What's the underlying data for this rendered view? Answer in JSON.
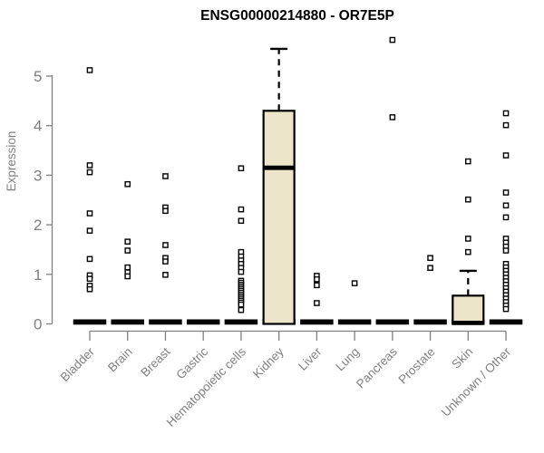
{
  "chart_data": {
    "type": "boxplot",
    "title": "ENSG00000214880 - OR7E5P",
    "ylabel": "Expression",
    "xlabel": "",
    "ylim": [
      0,
      5.9
    ],
    "yticks": [
      0,
      1,
      2,
      3,
      4,
      5
    ],
    "grid": false,
    "legend": "none",
    "colors": {
      "box_fill": "#ECE5C9",
      "box_border": "#000000",
      "median": "#000000",
      "whisker": "#000000",
      "outlier_fill": "#FFFFFF",
      "outlier_border": "#000000",
      "axis": "#808080",
      "tick_label": "#808080",
      "title": "#000000",
      "background": "#FFFFFF"
    },
    "categories": [
      "Bladder",
      "Brain",
      "Breast",
      "Gastric",
      "Hematopoietic cells",
      "Kidney",
      "Liver",
      "Lung",
      "Pancreas",
      "Prostate",
      "Skin",
      "Unknown / Other"
    ],
    "boxes": [
      {
        "label": "Bladder",
        "q1": 0,
        "median": 0,
        "q3": 0,
        "whisker_low": 0,
        "whisker_high": 0,
        "outliers": [
          5.12,
          3.2,
          3.06,
          2.23,
          1.88,
          1.31,
          0.98,
          0.91,
          0.77,
          0.7
        ]
      },
      {
        "label": "Brain",
        "q1": 0,
        "median": 0,
        "q3": 0,
        "whisker_low": 0,
        "whisker_high": 0,
        "outliers": [
          2.82,
          1.66,
          1.48,
          1.14,
          1.04,
          0.96
        ]
      },
      {
        "label": "Breast",
        "q1": 0,
        "median": 0,
        "q3": 0,
        "whisker_low": 0,
        "whisker_high": 0,
        "outliers": [
          2.98,
          2.35,
          2.28,
          1.59,
          1.33,
          1.26,
          0.99
        ]
      },
      {
        "label": "Gastric",
        "q1": 0,
        "median": 0,
        "q3": 0,
        "whisker_low": 0,
        "whisker_high": 0,
        "outliers": []
      },
      {
        "label": "Hematopoietic cells",
        "q1": 0,
        "median": 0,
        "q3": 0,
        "whisker_low": 0,
        "whisker_high": 0,
        "outliers": [
          3.14,
          2.31,
          2.08,
          1.45,
          1.36,
          1.28,
          1.21,
          1.13,
          1.05,
          0.87,
          0.83,
          0.79,
          0.75,
          0.71,
          0.67,
          0.63,
          0.59,
          0.55,
          0.51,
          0.47,
          0.43,
          0.39,
          0.28
        ]
      },
      {
        "label": "Kidney",
        "q1": 0,
        "median": 3.15,
        "q3": 4.3,
        "whisker_low": 0,
        "whisker_high": 5.55,
        "outliers": []
      },
      {
        "label": "Liver",
        "q1": 0,
        "median": 0,
        "q3": 0,
        "whisker_low": 0,
        "whisker_high": 0,
        "outliers": [
          0.97,
          0.9,
          0.78,
          0.42
        ]
      },
      {
        "label": "Lung",
        "q1": 0,
        "median": 0,
        "q3": 0,
        "whisker_low": 0,
        "whisker_high": 0,
        "outliers": [
          0.82
        ]
      },
      {
        "label": "Pancreas",
        "q1": 0,
        "median": 0,
        "q3": 0,
        "whisker_low": 0,
        "whisker_high": 0,
        "outliers": [
          5.73,
          4.17
        ]
      },
      {
        "label": "Prostate",
        "q1": 0,
        "median": 0,
        "q3": 0,
        "whisker_low": 0,
        "whisker_high": 0,
        "outliers": [
          1.33,
          1.13
        ]
      },
      {
        "label": "Skin",
        "q1": 0,
        "median": 0.02,
        "q3": 0.57,
        "whisker_low": 0,
        "whisker_high": 1.07,
        "outliers": [
          3.28,
          2.51,
          1.72,
          1.45
        ]
      },
      {
        "label": "Unknown / Other",
        "q1": 0,
        "median": 0,
        "q3": 0,
        "whisker_low": 0,
        "whisker_high": 0,
        "outliers": [
          4.25,
          4.01,
          3.4,
          2.65,
          2.39,
          2.15,
          1.72,
          1.64,
          1.56,
          1.48,
          1.21,
          1.14,
          1.07,
          1.0,
          0.93,
          0.86,
          0.79,
          0.72,
          0.65,
          0.58,
          0.51,
          0.44,
          0.37,
          0.3
        ]
      }
    ]
  }
}
